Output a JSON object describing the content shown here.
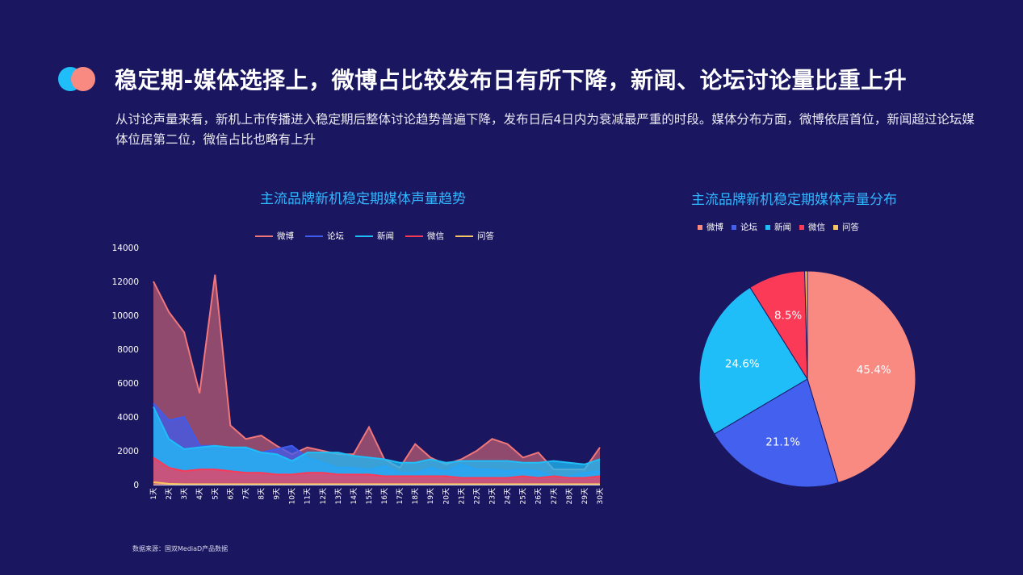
{
  "header": {
    "title": "稳定期-媒体选择上，微博占比较发布日有所下降，新闻、论坛讨论量比重上升",
    "description": "从讨论声量来看，新机上市传播进入稳定期后整体讨论趋势普遍下降，发布日后4日内为衰减最严重的时段。媒体分布方面，微博依居首位，新闻超过论坛媒体位居第二位，微信占比也略有上升"
  },
  "source": "数据来源：国双MediaD产品数据",
  "chart_data": [
    {
      "type": "area",
      "title": "主流品牌新机稳定期媒体声量趋势",
      "xlabel": "",
      "ylabel": "",
      "ylim": [
        0,
        14000
      ],
      "yticks": [
        0,
        2000,
        4000,
        6000,
        8000,
        10000,
        12000,
        14000
      ],
      "grid": false,
      "legend_position": "top-center",
      "categories": [
        "1天",
        "2天",
        "3天",
        "4天",
        "5天",
        "6天",
        "7天",
        "8天",
        "9天",
        "10天",
        "11天",
        "12天",
        "13天",
        "14天",
        "15天",
        "16天",
        "17天",
        "18天",
        "19天",
        "20天",
        "21天",
        "22天",
        "23天",
        "24天",
        "25天",
        "26天",
        "27天",
        "28天",
        "29天",
        "30天"
      ],
      "series": [
        {
          "name": "微博",
          "color": "#f0767a",
          "values": [
            12000,
            10200,
            9000,
            5400,
            12400,
            3500,
            2700,
            2900,
            2300,
            1800,
            2200,
            2000,
            1800,
            1800,
            3400,
            1500,
            1000,
            2400,
            1600,
            1200,
            1500,
            2000,
            2700,
            2400,
            1600,
            1900,
            900,
            900,
            900,
            2200
          ]
        },
        {
          "name": "论坛",
          "color": "#3f5cf0",
          "values": [
            4800,
            3800,
            4000,
            2300,
            2300,
            2100,
            2100,
            1900,
            2100,
            2300,
            1600,
            1300,
            1000,
            1000,
            900,
            1100,
            700,
            700,
            1000,
            800,
            1200,
            900,
            900,
            800,
            900,
            800,
            500,
            500,
            700,
            800
          ]
        },
        {
          "name": "新闻",
          "color": "#1fbef8",
          "values": [
            4600,
            2700,
            2100,
            2200,
            2300,
            2200,
            2200,
            1900,
            1800,
            1400,
            1900,
            1900,
            1900,
            1700,
            1600,
            1500,
            1300,
            1300,
            1500,
            1300,
            1400,
            1400,
            1400,
            1400,
            1300,
            1300,
            1400,
            1300,
            1200,
            1500
          ]
        },
        {
          "name": "微信",
          "color": "#fb3a57",
          "values": [
            1600,
            1000,
            800,
            900,
            900,
            800,
            700,
            700,
            600,
            600,
            700,
            700,
            600,
            600,
            600,
            500,
            500,
            500,
            500,
            500,
            400,
            400,
            400,
            400,
            500,
            400,
            500,
            400,
            400,
            500
          ]
        },
        {
          "name": "问答",
          "color": "#f6c463",
          "values": [
            150,
            50,
            30,
            30,
            30,
            30,
            30,
            30,
            30,
            30,
            30,
            30,
            30,
            30,
            30,
            30,
            30,
            30,
            30,
            30,
            30,
            30,
            30,
            30,
            30,
            30,
            30,
            30,
            30,
            30
          ]
        }
      ]
    },
    {
      "type": "pie",
      "title": "主流品牌新机稳定期媒体声量分布",
      "legend_position": "top",
      "slices": [
        {
          "name": "微博",
          "value": 45.4,
          "label": "45.4%",
          "color": "#f88a82"
        },
        {
          "name": "论坛",
          "value": 21.1,
          "label": "21.1%",
          "color": "#4361ee"
        },
        {
          "name": "新闻",
          "value": 24.6,
          "label": "24.6%",
          "color": "#1fbef8"
        },
        {
          "name": "微信",
          "value": 8.5,
          "label": "8.5%",
          "color": "#fb3a57"
        },
        {
          "name": "问答",
          "value": 0.4,
          "label": "",
          "color": "#f6c463"
        }
      ]
    }
  ]
}
